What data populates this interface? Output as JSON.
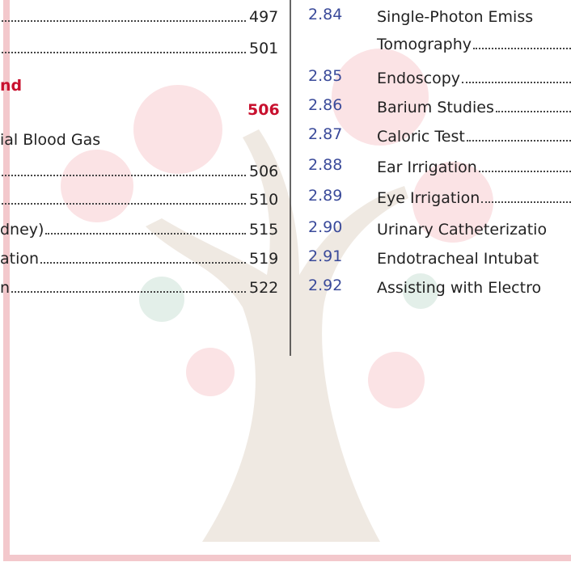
{
  "left_column": {
    "entries": [
      {
        "page": "497"
      },
      {
        "page": "501"
      },
      {
        "title": "ial Blood Gas"
      },
      {
        "page": "506"
      },
      {
        "page": "510"
      },
      {
        "title": "dney)",
        "page": "515"
      },
      {
        "title": "ation",
        "page": "519"
      },
      {
        "title": "n",
        "page": "522"
      }
    ],
    "section": {
      "title": "nd",
      "page": "506"
    }
  },
  "right_column": {
    "entries": [
      {
        "number": "2.84",
        "title": "Single-Photon Emiss"
      },
      {
        "title": "Tomography"
      },
      {
        "number": "2.85",
        "title": "Endoscopy"
      },
      {
        "number": "2.86",
        "title": "Barium Studies"
      },
      {
        "number": "2.87",
        "title": "Caloric Test"
      },
      {
        "number": "2.88",
        "title": "Ear Irrigation"
      },
      {
        "number": "2.89",
        "title": "Eye Irrigation"
      },
      {
        "number": "2.90",
        "title": "Urinary Catheterizatio"
      },
      {
        "number": "2.91",
        "title": "Endotracheal Intubat"
      },
      {
        "number": "2.92",
        "title": "Assisting with Electro"
      }
    ]
  }
}
